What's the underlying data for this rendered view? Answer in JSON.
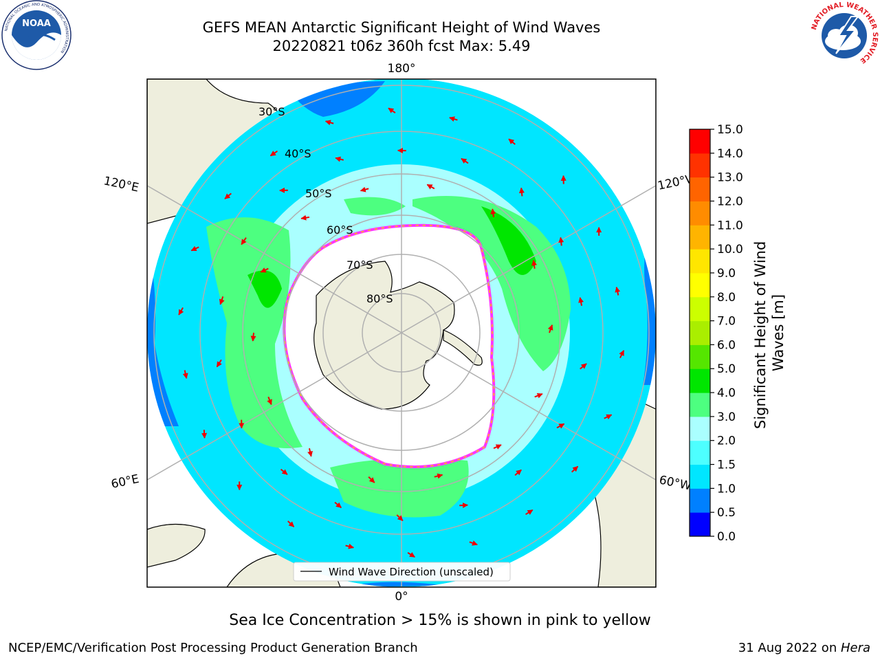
{
  "header": {
    "title_line1": "GEFS MEAN Antarctic Significant Height of Wind Waves",
    "title_line2": "20220821 t06z 360h fcst   Max: 5.49"
  },
  "logos": {
    "noaa_text": "NOAA",
    "noaa_ring": "NATIONAL OCEANIC AND ATMOSPHERIC ADMINISTRATION",
    "noaa_ring_bottom": "U.S. DEPARTMENT OF COMMERCE",
    "nws_ring": "NATIONAL WEATHER SERVICE"
  },
  "map": {
    "lon_labels": {
      "top": "180°",
      "bottom": "0°",
      "left_upper": "120°E",
      "left_lower": "60°E",
      "right_upper": "120°W",
      "right_lower": "60°W"
    },
    "lat_labels": [
      "30°S",
      "40°S",
      "50°S",
      "60°S",
      "70°S",
      "80°S"
    ],
    "legend_label": "Wind Wave Direction (unscaled)",
    "colors": {
      "land": "#eeeedd",
      "ice_edge_pink": "#ff33ff",
      "ice_edge_yellow": "#ffcc00",
      "arrow": "#ee0000"
    }
  },
  "colorbar": {
    "label": "Significant Height of Wind Waves [m]",
    "label_line1": "Significant Height of Wind",
    "label_line2": "Waves [m]",
    "ticks": [
      "0.0",
      "0.5",
      "1.0",
      "1.5",
      "2.0",
      "3.0",
      "4.0",
      "5.0",
      "6.0",
      "7.0",
      "8.0",
      "9.0",
      "10.0",
      "11.0",
      "12.0",
      "13.0",
      "14.0",
      "15.0"
    ],
    "colors": [
      "#0000ff",
      "#0080ff",
      "#00e6ff",
      "#4dffff",
      "#aaffff",
      "#4dff80",
      "#00e600",
      "#55e600",
      "#aaee00",
      "#ccff00",
      "#ffff00",
      "#ffe600",
      "#ffb400",
      "#ff8c00",
      "#ff6400",
      "#ff3200",
      "#ff0000"
    ]
  },
  "footer": {
    "sea_ice_note": "Sea Ice Concentration > 15% is shown in pink to yellow",
    "branch": "NCEP/EMC/Verification Post Processing Product Generation Branch",
    "date": "31 Aug 2022 on ",
    "host": "Hera"
  }
}
